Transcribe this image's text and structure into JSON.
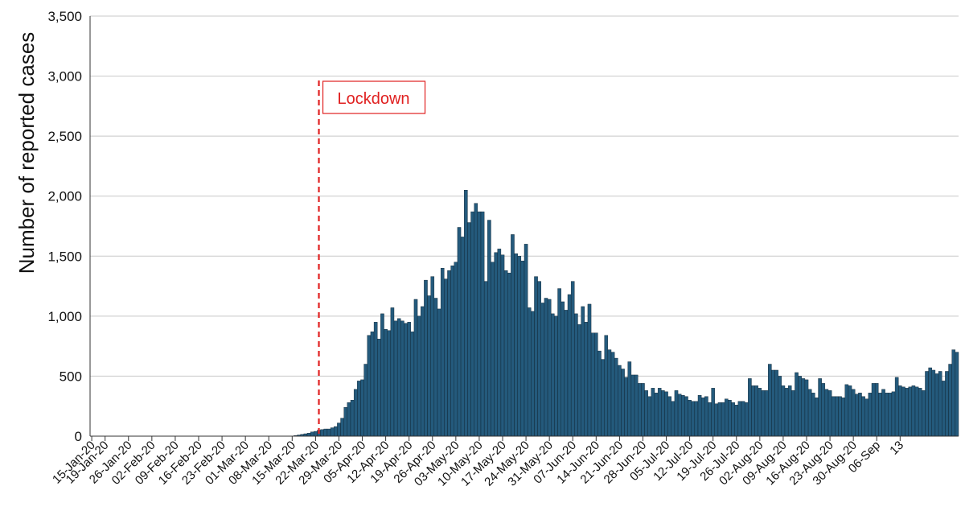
{
  "chart_data": {
    "type": "bar",
    "title": "",
    "ylabel": "Number of reported cases",
    "xlabel": "",
    "ylim": [
      0,
      3500
    ],
    "yticks": [
      0,
      500,
      1000,
      1500,
      2000,
      2500,
      3000,
      3500
    ],
    "ytick_labels": [
      "0",
      "500",
      "1,000",
      "1,500",
      "2,000",
      "2,500",
      "3,000",
      "3,500"
    ],
    "grid": "horizontal",
    "x_start": "2020-01-15",
    "x_tick_labels": [
      "15-Jan-20",
      "19-Jan-20",
      "26-Jan-20",
      "02-Feb-20",
      "09-Feb-20",
      "16-Feb-20",
      "23-Feb-20",
      "01-Mar-20",
      "08-Mar-20",
      "15-Mar-20",
      "22-Mar-20",
      "29-Mar-20",
      "05-Apr-20",
      "12-Apr-20",
      "19-Apr-20",
      "26-Apr-20",
      "03-May-20",
      "10-May-20",
      "17-May-20",
      "24-May-20",
      "31-May-20",
      "07-Jun-20",
      "14-Jun-20",
      "21-Jun-20",
      "28-Jun-20",
      "05-Jul-20",
      "12-Jul-20",
      "19-Jul-20",
      "26-Jul-20",
      "02-Aug-20",
      "09-Aug-20",
      "16-Aug-20",
      "23-Aug-20",
      "30-Aug-20",
      "06-Sep",
      "13"
    ],
    "bar_color": "#245a7c",
    "values": [
      0,
      0,
      0,
      0,
      0,
      0,
      0,
      0,
      0,
      0,
      0,
      0,
      0,
      0,
      0,
      0,
      0,
      0,
      0,
      0,
      0,
      0,
      0,
      0,
      0,
      0,
      0,
      0,
      0,
      0,
      0,
      0,
      0,
      0,
      0,
      0,
      0,
      0,
      0,
      0,
      0,
      0,
      0,
      0,
      0,
      0,
      0,
      0,
      0,
      0,
      0,
      0,
      0,
      0,
      0,
      0,
      0,
      0,
      0,
      0,
      0,
      5,
      10,
      15,
      20,
      25,
      35,
      40,
      50,
      55,
      60,
      60,
      70,
      80,
      110,
      150,
      240,
      280,
      300,
      390,
      460,
      470,
      600,
      840,
      870,
      950,
      810,
      1020,
      890,
      880,
      1070,
      960,
      980,
      960,
      940,
      950,
      870,
      1140,
      1000,
      1080,
      1300,
      1170,
      1330,
      1150,
      1060,
      1400,
      1310,
      1380,
      1420,
      1450,
      1740,
      1660,
      2050,
      1780,
      1870,
      1940,
      1870,
      1870,
      1290,
      1800,
      1450,
      1530,
      1560,
      1510,
      1380,
      1360,
      1680,
      1520,
      1500,
      1460,
      1600,
      1070,
      1040,
      1330,
      1290,
      1110,
      1150,
      1140,
      1020,
      1000,
      1230,
      1120,
      1050,
      1180,
      1290,
      1020,
      930,
      1080,
      950,
      1100,
      860,
      860,
      710,
      640,
      840,
      720,
      700,
      650,
      590,
      560,
      490,
      620,
      510,
      510,
      440,
      440,
      380,
      330,
      400,
      360,
      400,
      380,
      370,
      330,
      290,
      380,
      350,
      340,
      330,
      300,
      290,
      290,
      340,
      320,
      330,
      280,
      400,
      270,
      280,
      280,
      310,
      300,
      280,
      260,
      290,
      290,
      280,
      480,
      420,
      420,
      400,
      380,
      380,
      600,
      550,
      550,
      500,
      420,
      400,
      420,
      380,
      530,
      500,
      480,
      470,
      390,
      360,
      320,
      480,
      440,
      390,
      380,
      330,
      330,
      330,
      320,
      430,
      420,
      390,
      350,
      360,
      330,
      310,
      360,
      440,
      440,
      360,
      390,
      360,
      360,
      370,
      490,
      420,
      410,
      400,
      410,
      420,
      410,
      400,
      380,
      540,
      570,
      550,
      520,
      540,
      460,
      540,
      600,
      720,
      700
    ]
  },
  "annotation": {
    "label": "Lockdown",
    "date": "2020-03-23",
    "color": "#e02020"
  }
}
